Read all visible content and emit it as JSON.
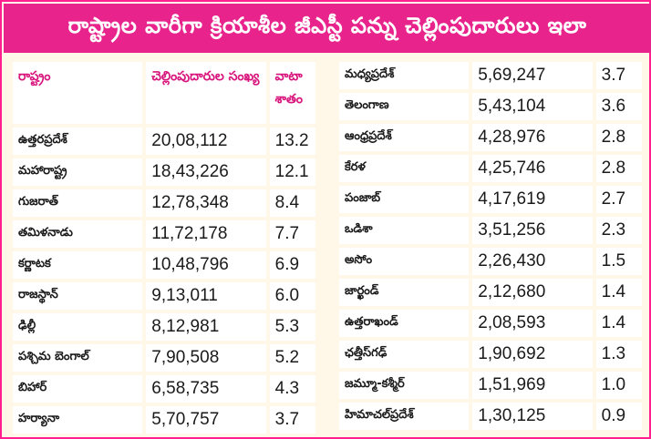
{
  "title": "రాష్ట్రాల వారీగా క్రియాశీల జీఎస్టీ పన్ను చెల్లింపుదారులు ఇలా",
  "headers": {
    "state": "రాష్ట్రం",
    "count": "చెల్లింపుదారుల సంఖ్య",
    "share": "వాటా శాతం"
  },
  "left_rows": [
    {
      "state": "ఉత్తరప్రదేశ్",
      "count": "20,08,112",
      "share": "13.2"
    },
    {
      "state": "మహారాష్ట్ర",
      "count": "18,43,226",
      "share": "12.1"
    },
    {
      "state": "గుజరాత్",
      "count": "12,78,348",
      "share": "8.4"
    },
    {
      "state": "తమిళనాడు",
      "count": "11,72,178",
      "share": "7.7"
    },
    {
      "state": "కర్ణాటక",
      "count": "10,48,796",
      "share": "6.9"
    },
    {
      "state": "రాజస్థాన్",
      "count": "9,13,011",
      "share": "6.0"
    },
    {
      "state": "ఢిల్లీ",
      "count": "8,12,981",
      "share": "5.3"
    },
    {
      "state": "పశ్చిమ బెంగాల్",
      "count": "7,90,508",
      "share": "5.2"
    },
    {
      "state": "బిహార్",
      "count": "6,58,735",
      "share": "4.3"
    },
    {
      "state": "హర్యానా",
      "count": "5,70,757",
      "share": "3.7"
    }
  ],
  "right_rows": [
    {
      "state": "మధ్యప్రదేశ్",
      "count": "5,69,247",
      "share": "3.7"
    },
    {
      "state": "తెలంగాణ",
      "count": "5,43,104",
      "share": "3.6"
    },
    {
      "state": "ఆంధ్రప్రదేశ్",
      "count": "4,28,976",
      "share": "2.8"
    },
    {
      "state": "కేరళ",
      "count": "4,25,746",
      "share": "2.8"
    },
    {
      "state": "పంజాబ్",
      "count": "4,17,619",
      "share": "2.7"
    },
    {
      "state": "ఒడిశా",
      "count": "3,51,256",
      "share": "2.3"
    },
    {
      "state": "అసోం",
      "count": "2,26,430",
      "share": "1.5"
    },
    {
      "state": "జార్ఖండ్",
      "count": "2,12,680",
      "share": "1.4"
    },
    {
      "state": "ఉత్తరాఖండ్",
      "count": "2,08,593",
      "share": "1.4"
    },
    {
      "state": "ఛత్తీస్‌గఢ్",
      "count": "1,90,692",
      "share": "1.3"
    },
    {
      "state": "జమ్మూ-కశ్మీర్",
      "count": "1,51,969",
      "share": "1.0"
    },
    {
      "state": "హిమాచల్‌ప్రదేశ్",
      "count": "1,30,125",
      "share": "0.9"
    }
  ],
  "colors": {
    "accent": "#e8238c",
    "header_text": "#d8157c",
    "panel_bg": "#fff8e8"
  }
}
